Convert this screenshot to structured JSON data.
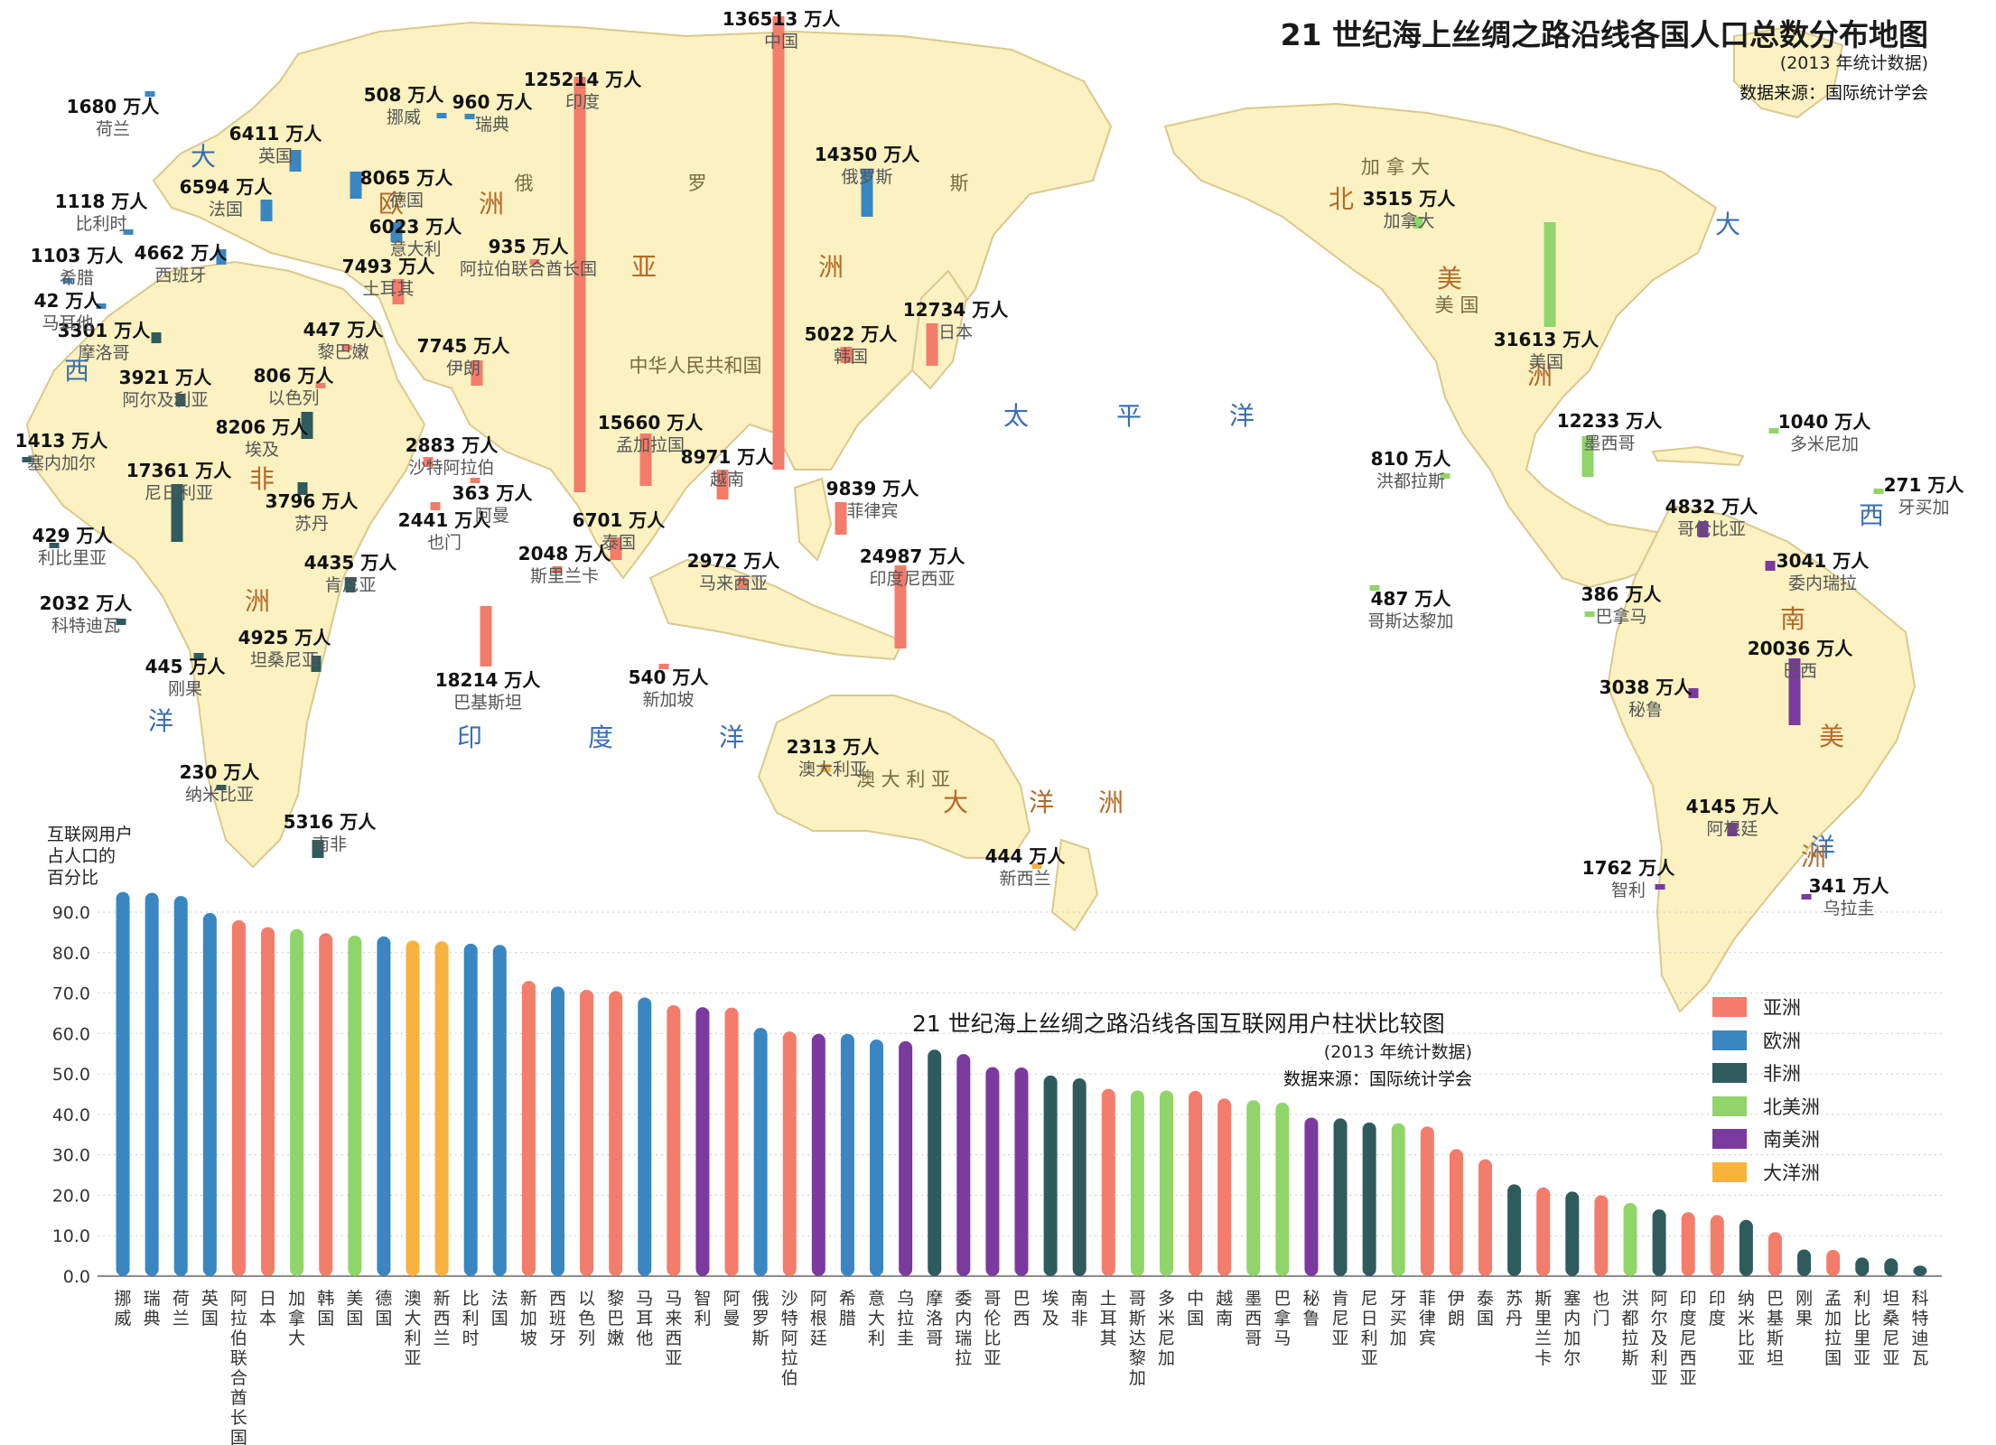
{
  "map_title": "21 世纪海上丝绸之路沿线各国人口总数分布地图",
  "map_subtitle": "(2013 年统计数据)",
  "map_source": "数据来源：国际统计学会",
  "colors": {
    "亚洲": "#f47c6a",
    "欧洲": "#3a86c0",
    "非洲": "#2f5b5c",
    "北美洲": "#90d46a",
    "南美洲": "#7a3a9e",
    "大洋洲": "#f7b33d",
    "land": "#fbf1c1",
    "land_border": "#c9b98a",
    "sea": "#ffffff",
    "ocean_label": "#3a6fb0",
    "continent_label": "#b36a2a"
  },
  "ocean_labels": [
    "大",
    "西",
    "洋",
    "印",
    "度",
    "洋",
    "太",
    "平",
    "洋",
    "大",
    "西",
    "洋",
    "太",
    "平",
    "洋"
  ],
  "continent_labels": [
    "欧",
    "洲",
    "亚",
    "洲",
    "非",
    "洲",
    "北",
    "美",
    "洲",
    "南",
    "美",
    "洲",
    "大",
    "洋",
    "洲"
  ],
  "region_labels": [
    "俄",
    "罗",
    "斯",
    "中华人民共和国",
    "加 拿 大",
    "美 国",
    "澳 大 利 亚"
  ],
  "population": [
    {
      "country": "中国",
      "value": "136513 万人",
      "region": "亚洲",
      "v": 136513
    },
    {
      "country": "印度",
      "value": "125214 万人",
      "region": "亚洲",
      "v": 125214
    },
    {
      "country": "美国",
      "value": "31613 万人",
      "region": "北美洲",
      "v": 31613
    },
    {
      "country": "印度尼西亚",
      "value": "24987 万人",
      "region": "亚洲",
      "v": 24987
    },
    {
      "country": "巴西",
      "value": "20036 万人",
      "region": "南美洲",
      "v": 20036
    },
    {
      "country": "巴基斯坦",
      "value": "18214 万人",
      "region": "亚洲",
      "v": 18214
    },
    {
      "country": "尼日利亚",
      "value": "17361 万人",
      "region": "非洲",
      "v": 17361
    },
    {
      "country": "孟加拉国",
      "value": "15660 万人",
      "region": "亚洲",
      "v": 15660
    },
    {
      "country": "俄罗斯",
      "value": "14350 万人",
      "region": "欧洲",
      "v": 14350
    },
    {
      "country": "日本",
      "value": "12734 万人",
      "region": "亚洲",
      "v": 12734
    },
    {
      "country": "墨西哥",
      "value": "12233 万人",
      "region": "北美洲",
      "v": 12233
    },
    {
      "country": "菲律宾",
      "value": "9839 万人",
      "region": "亚洲",
      "v": 9839
    },
    {
      "country": "越南",
      "value": "8971 万人",
      "region": "亚洲",
      "v": 8971
    },
    {
      "country": "埃及",
      "value": "8206 万人",
      "region": "非洲",
      "v": 8206
    },
    {
      "country": "德国",
      "value": "8065 万人",
      "region": "欧洲",
      "v": 8065
    },
    {
      "country": "伊朗",
      "value": "7745 万人",
      "region": "亚洲",
      "v": 7745
    },
    {
      "country": "土耳其",
      "value": "7493 万人",
      "region": "亚洲",
      "v": 7493
    },
    {
      "country": "泰国",
      "value": "6701 万人",
      "region": "亚洲",
      "v": 6701
    },
    {
      "country": "法国",
      "value": "6594 万人",
      "region": "欧洲",
      "v": 6594
    },
    {
      "country": "英国",
      "value": "6411 万人",
      "region": "欧洲",
      "v": 6411
    },
    {
      "country": "意大利",
      "value": "6023 万人",
      "region": "欧洲",
      "v": 6023
    },
    {
      "country": "南非",
      "value": "5316 万人",
      "region": "非洲",
      "v": 5316
    },
    {
      "country": "韩国",
      "value": "5022 万人",
      "region": "亚洲",
      "v": 5022
    },
    {
      "country": "坦桑尼亚",
      "value": "4925 万人",
      "region": "非洲",
      "v": 4925
    },
    {
      "country": "哥伦比亚",
      "value": "4832 万人",
      "region": "南美洲",
      "v": 4832
    },
    {
      "country": "西班牙",
      "value": "4662 万人",
      "region": "欧洲",
      "v": 4662
    },
    {
      "country": "肯尼亚",
      "value": "4435 万人",
      "region": "非洲",
      "v": 4435
    },
    {
      "country": "阿根廷",
      "value": "4145 万人",
      "region": "南美洲",
      "v": 4145
    },
    {
      "country": "摩洛哥",
      "value": "3301 万人",
      "region": "非洲",
      "v": 3301
    },
    {
      "country": "阿尔及利亚",
      "value": "3921 万人",
      "region": "非洲",
      "v": 3921
    },
    {
      "country": "苏丹",
      "value": "3796 万人",
      "region": "非洲",
      "v": 3796
    },
    {
      "country": "加拿大",
      "value": "3515 万人",
      "region": "北美洲",
      "v": 3515
    },
    {
      "country": "委内瑞拉",
      "value": "3041 万人",
      "region": "南美洲",
      "v": 3041
    },
    {
      "country": "秘鲁",
      "value": "3038 万人",
      "region": "南美洲",
      "v": 3038
    },
    {
      "country": "马来西亚",
      "value": "2972 万人",
      "region": "亚洲",
      "v": 2972
    },
    {
      "country": "沙特阿拉伯",
      "value": "2883 万人",
      "region": "亚洲",
      "v": 2883
    },
    {
      "country": "也门",
      "value": "2441 万人",
      "region": "亚洲",
      "v": 2441
    },
    {
      "country": "澳大利亚",
      "value": "2313 万人",
      "region": "大洋洲",
      "v": 2313
    },
    {
      "country": "斯里兰卡",
      "value": "2048 万人",
      "region": "亚洲",
      "v": 2048
    },
    {
      "country": "科特迪瓦",
      "value": "2032 万人",
      "region": "非洲",
      "v": 2032
    },
    {
      "country": "智利",
      "value": "1762 万人",
      "region": "南美洲",
      "v": 1762
    },
    {
      "country": "荷兰",
      "value": "1680 万人",
      "region": "欧洲",
      "v": 1680
    },
    {
      "country": "塞内加尔",
      "value": "1413 万人",
      "region": "非洲",
      "v": 1413
    },
    {
      "country": "比利时",
      "value": "1118 万人",
      "region": "欧洲",
      "v": 1118
    },
    {
      "country": "希腊",
      "value": "1103 万人",
      "region": "欧洲",
      "v": 1103
    },
    {
      "country": "多米尼加",
      "value": "1040 万人",
      "region": "北美洲",
      "v": 1040
    },
    {
      "country": "阿拉伯联合酋长国",
      "value": "935 万人",
      "region": "亚洲",
      "v": 935
    },
    {
      "country": "瑞典",
      "value": "960 万人",
      "region": "欧洲",
      "v": 960
    },
    {
      "country": "洪都拉斯",
      "value": "810 万人",
      "region": "北美洲",
      "v": 810
    },
    {
      "country": "以色列",
      "value": "806 万人",
      "region": "亚洲",
      "v": 806
    },
    {
      "country": "新加坡",
      "value": "540 万人",
      "region": "亚洲",
      "v": 540
    },
    {
      "country": "挪威",
      "value": "508 万人",
      "region": "欧洲",
      "v": 508
    },
    {
      "country": "哥斯达黎加",
      "value": "487 万人",
      "region": "北美洲",
      "v": 487
    },
    {
      "country": "黎巴嫩",
      "value": "447 万人",
      "region": "亚洲",
      "v": 447
    },
    {
      "country": "刚果",
      "value": "445 万人",
      "region": "非洲",
      "v": 445
    },
    {
      "country": "新西兰",
      "value": "444 万人",
      "region": "大洋洲",
      "v": 444
    },
    {
      "country": "利比里亚",
      "value": "429 万人",
      "region": "非洲",
      "v": 429
    },
    {
      "country": "巴拿马",
      "value": "386 万人",
      "region": "北美洲",
      "v": 386
    },
    {
      "country": "阿曼",
      "value": "363 万人",
      "region": "亚洲",
      "v": 363
    },
    {
      "country": "乌拉圭",
      "value": "341 万人",
      "region": "南美洲",
      "v": 341
    },
    {
      "country": "牙买加",
      "value": "271 万人",
      "region": "北美洲",
      "v": 271
    },
    {
      "country": "纳米比亚",
      "value": "230 万人",
      "region": "非洲",
      "v": 230
    },
    {
      "country": "马耳他",
      "value": "42 万人",
      "region": "欧洲",
      "v": 42
    }
  ],
  "chart_data": {
    "type": "bar",
    "title": "21 世纪海上丝绸之路沿线各国互联网用户柱状比较图",
    "subtitle": "(2013 年统计数据)",
    "source": "数据来源：国际统计学会",
    "ylabel": "互联网用户占人口的百分比",
    "ylabel_lines": [
      "互联网用户",
      "占人口的",
      "百分比"
    ],
    "ylim": [
      0,
      90
    ],
    "yticks": [
      "0.0",
      "10.0",
      "20.0",
      "30.0",
      "40.0",
      "50.0",
      "60.0",
      "70.0",
      "80.0",
      "90.0"
    ],
    "legend": [
      "亚洲",
      "欧洲",
      "非洲",
      "北美洲",
      "南美洲",
      "大洋洲"
    ],
    "bars": [
      {
        "c": "挪威",
        "v": 95.0,
        "r": "欧洲"
      },
      {
        "c": "瑞典",
        "v": 94.8,
        "r": "欧洲"
      },
      {
        "c": "荷兰",
        "v": 94.0,
        "r": "欧洲"
      },
      {
        "c": "英国",
        "v": 89.8,
        "r": "欧洲"
      },
      {
        "c": "阿拉伯联合酋长国",
        "v": 88.0,
        "r": "亚洲"
      },
      {
        "c": "日本",
        "v": 86.3,
        "r": "亚洲"
      },
      {
        "c": "加拿大",
        "v": 85.8,
        "r": "北美洲"
      },
      {
        "c": "韩国",
        "v": 84.8,
        "r": "亚洲"
      },
      {
        "c": "美国",
        "v": 84.2,
        "r": "北美洲"
      },
      {
        "c": "德国",
        "v": 84.0,
        "r": "欧洲"
      },
      {
        "c": "澳大利亚",
        "v": 83.0,
        "r": "大洋洲"
      },
      {
        "c": "新西兰",
        "v": 82.8,
        "r": "大洋洲"
      },
      {
        "c": "比利时",
        "v": 82.2,
        "r": "欧洲"
      },
      {
        "c": "法国",
        "v": 81.9,
        "r": "欧洲"
      },
      {
        "c": "新加坡",
        "v": 73.0,
        "r": "亚洲"
      },
      {
        "c": "西班牙",
        "v": 71.6,
        "r": "欧洲"
      },
      {
        "c": "以色列",
        "v": 70.8,
        "r": "亚洲"
      },
      {
        "c": "黎巴嫩",
        "v": 70.5,
        "r": "亚洲"
      },
      {
        "c": "马耳他",
        "v": 68.9,
        "r": "欧洲"
      },
      {
        "c": "马来西亚",
        "v": 67.0,
        "r": "亚洲"
      },
      {
        "c": "智利",
        "v": 66.5,
        "r": "南美洲"
      },
      {
        "c": "阿曼",
        "v": 66.4,
        "r": "亚洲"
      },
      {
        "c": "俄罗斯",
        "v": 61.4,
        "r": "欧洲"
      },
      {
        "c": "沙特阿拉伯",
        "v": 60.5,
        "r": "亚洲"
      },
      {
        "c": "阿根廷",
        "v": 59.9,
        "r": "南美洲"
      },
      {
        "c": "希腊",
        "v": 59.9,
        "r": "欧洲"
      },
      {
        "c": "意大利",
        "v": 58.5,
        "r": "欧洲"
      },
      {
        "c": "乌拉圭",
        "v": 58.1,
        "r": "南美洲"
      },
      {
        "c": "摩洛哥",
        "v": 56.0,
        "r": "非洲"
      },
      {
        "c": "委内瑞拉",
        "v": 54.9,
        "r": "南美洲"
      },
      {
        "c": "哥伦比亚",
        "v": 51.7,
        "r": "南美洲"
      },
      {
        "c": "巴西",
        "v": 51.6,
        "r": "南美洲"
      },
      {
        "c": "埃及",
        "v": 49.6,
        "r": "非洲"
      },
      {
        "c": "南非",
        "v": 48.9,
        "r": "非洲"
      },
      {
        "c": "土耳其",
        "v": 46.3,
        "r": "亚洲"
      },
      {
        "c": "哥斯达黎加",
        "v": 45.9,
        "r": "北美洲"
      },
      {
        "c": "多米尼加",
        "v": 45.9,
        "r": "北美洲"
      },
      {
        "c": "中国",
        "v": 45.8,
        "r": "亚洲"
      },
      {
        "c": "越南",
        "v": 43.9,
        "r": "亚洲"
      },
      {
        "c": "墨西哥",
        "v": 43.5,
        "r": "北美洲"
      },
      {
        "c": "巴拿马",
        "v": 42.9,
        "r": "北美洲"
      },
      {
        "c": "秘鲁",
        "v": 39.2,
        "r": "南美洲"
      },
      {
        "c": "肯尼亚",
        "v": 39.0,
        "r": "非洲"
      },
      {
        "c": "尼日利亚",
        "v": 38.0,
        "r": "非洲"
      },
      {
        "c": "牙买加",
        "v": 37.8,
        "r": "北美洲"
      },
      {
        "c": "菲律宾",
        "v": 37.0,
        "r": "亚洲"
      },
      {
        "c": "伊朗",
        "v": 31.4,
        "r": "亚洲"
      },
      {
        "c": "泰国",
        "v": 28.9,
        "r": "亚洲"
      },
      {
        "c": "苏丹",
        "v": 22.7,
        "r": "非洲"
      },
      {
        "c": "斯里兰卡",
        "v": 21.9,
        "r": "亚洲"
      },
      {
        "c": "塞内加尔",
        "v": 20.9,
        "r": "非洲"
      },
      {
        "c": "也门",
        "v": 20.0,
        "r": "亚洲"
      },
      {
        "c": "洪都拉斯",
        "v": 18.1,
        "r": "北美洲"
      },
      {
        "c": "阿尔及利亚",
        "v": 16.5,
        "r": "非洲"
      },
      {
        "c": "印度尼西亚",
        "v": 15.8,
        "r": "亚洲"
      },
      {
        "c": "印度",
        "v": 15.1,
        "r": "亚洲"
      },
      {
        "c": "纳米比亚",
        "v": 13.9,
        "r": "非洲"
      },
      {
        "c": "巴基斯坦",
        "v": 10.9,
        "r": "亚洲"
      },
      {
        "c": "刚果",
        "v": 6.6,
        "r": "非洲"
      },
      {
        "c": "孟加拉国",
        "v": 6.5,
        "r": "亚洲"
      },
      {
        "c": "利比里亚",
        "v": 4.6,
        "r": "非洲"
      },
      {
        "c": "坦桑尼亚",
        "v": 4.4,
        "r": "非洲"
      },
      {
        "c": "科特迪瓦",
        "v": 2.6,
        "r": "非洲"
      }
    ]
  }
}
